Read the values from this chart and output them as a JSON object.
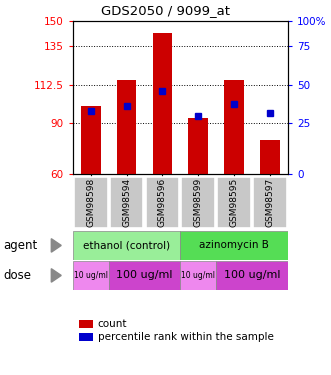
{
  "title": "GDS2050 / 9099_at",
  "samples": [
    "GSM98598",
    "GSM98594",
    "GSM98596",
    "GSM98599",
    "GSM98595",
    "GSM98597"
  ],
  "bar_heights": [
    100,
    115,
    143,
    93,
    115,
    80
  ],
  "bar_bottom": 60,
  "percentile_values": [
    97,
    100,
    109,
    94,
    101,
    96
  ],
  "ylim": [
    60,
    150
  ],
  "y_left_ticks": [
    60,
    90,
    112.5,
    135,
    150
  ],
  "y_left_labels": [
    "60",
    "90",
    "112.5",
    "135",
    "150"
  ],
  "y_right_tick_positions": [
    60,
    90,
    112.5,
    135,
    150
  ],
  "y_right_labels": [
    "0",
    "25",
    "50",
    "75",
    "100%"
  ],
  "bar_color": "#cc0000",
  "dot_color": "#0000cc",
  "agent_left_color": "#99ee99",
  "agent_right_color": "#55dd55",
  "dose_light_color": "#ee88ee",
  "dose_dark_color": "#cc44cc",
  "sample_bg_color": "#c0c0c0",
  "ethanol_label": "ethanol (control)",
  "azinomycin_label": "azinomycin B",
  "dose_labels": [
    "10 ug/ml",
    "100 ug/ml",
    "10 ug/ml",
    "100 ug/ml"
  ],
  "legend_count": "count",
  "legend_pct": "percentile rank within the sample",
  "agent_label": "agent",
  "dose_label": "dose"
}
